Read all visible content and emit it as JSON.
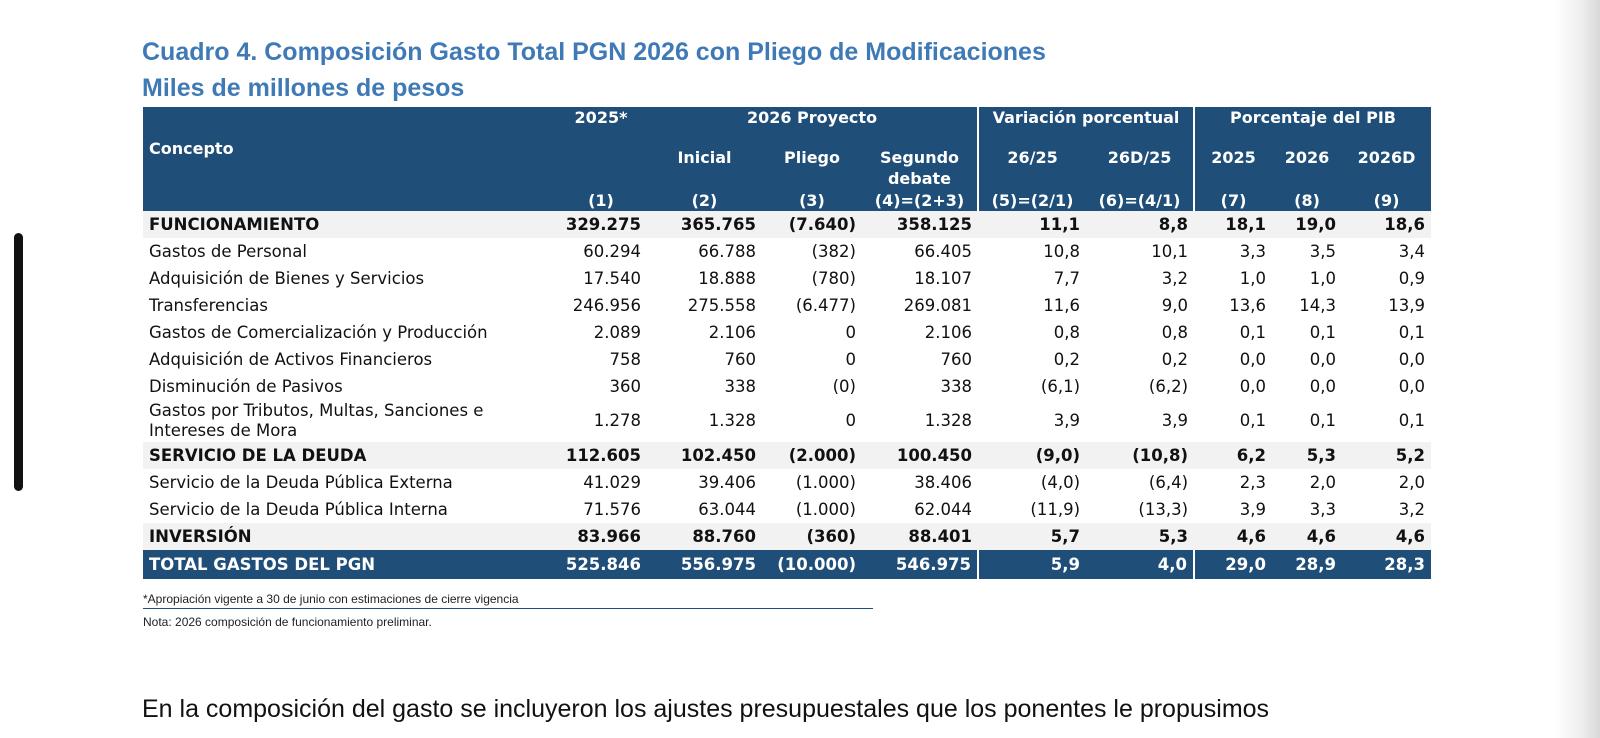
{
  "title_line1": "Cuadro 4. Composición Gasto Total PGN 2026 con Pliego de Modificaciones",
  "title_line2": "Miles de millones de pesos",
  "header": {
    "concepto": "Concepto",
    "y2025": "2025*",
    "proyecto": "2026 Proyecto",
    "variacion": "Variación porcentual",
    "porcentaje": "Porcentaje del PIB",
    "inicial": "Inicial",
    "pliego": "Pliego",
    "segundo": "Segundo debate",
    "v1": "26/25",
    "v2": "26D/25",
    "p1": "2025",
    "p2": "2026",
    "p3": "2026D",
    "n1": "(1)",
    "n2": "(2)",
    "n3": "(3)",
    "n4": "(4)=(2+3)",
    "n5": "(5)=(2/1)",
    "n6": "(6)=(4/1)",
    "n7": "(7)",
    "n8": "(8)",
    "n9": "(9)"
  },
  "rows": [
    {
      "label": "FUNCIONAMIENTO",
      "v": [
        "329.275",
        "365.765",
        "(7.640)",
        "358.125",
        "11,1",
        "8,8",
        "18,1",
        "19,0",
        "18,6"
      ]
    },
    {
      "label": "Gastos de Personal",
      "v": [
        "60.294",
        "66.788",
        "(382)",
        "66.405",
        "10,8",
        "10,1",
        "3,3",
        "3,5",
        "3,4"
      ]
    },
    {
      "label": "Adquisición de Bienes y Servicios",
      "v": [
        "17.540",
        "18.888",
        "(780)",
        "18.107",
        "7,7",
        "3,2",
        "1,0",
        "1,0",
        "0,9"
      ]
    },
    {
      "label": "Transferencias",
      "v": [
        "246.956",
        "275.558",
        "(6.477)",
        "269.081",
        "11,6",
        "9,0",
        "13,6",
        "14,3",
        "13,9"
      ]
    },
    {
      "label": "Gastos de Comercialización y Producción",
      "v": [
        "2.089",
        "2.106",
        "0",
        "2.106",
        "0,8",
        "0,8",
        "0,1",
        "0,1",
        "0,1"
      ]
    },
    {
      "label": "Adquisición de Activos Financieros",
      "v": [
        "758",
        "760",
        "0",
        "760",
        "0,2",
        "0,2",
        "0,0",
        "0,0",
        "0,0"
      ]
    },
    {
      "label": "Disminución de Pasivos",
      "v": [
        "360",
        "338",
        "(0)",
        "338",
        "(6,1)",
        "(6,2)",
        "0,0",
        "0,0",
        "0,0"
      ]
    },
    {
      "label": "Gastos por Tributos, Multas, Sanciones e Intereses de Mora",
      "v": [
        "1.278",
        "1.328",
        "0",
        "1.328",
        "3,9",
        "3,9",
        "0,1",
        "0,1",
        "0,1"
      ]
    },
    {
      "label": "SERVICIO DE LA DEUDA",
      "v": [
        "112.605",
        "102.450",
        "(2.000)",
        "100.450",
        "(9,0)",
        "(10,8)",
        "6,2",
        "5,3",
        "5,2"
      ]
    },
    {
      "label": "Servicio de la Deuda Pública Externa",
      "v": [
        "41.029",
        "39.406",
        "(1.000)",
        "38.406",
        "(4,0)",
        "(6,4)",
        "2,3",
        "2,0",
        "2,0"
      ]
    },
    {
      "label": "Servicio de la Deuda Pública Interna",
      "v": [
        "71.576",
        "63.044",
        "(1.000)",
        "62.044",
        "(11,9)",
        "(13,3)",
        "3,9",
        "3,3",
        "3,2"
      ]
    },
    {
      "label": "INVERSIÓN",
      "v": [
        "83.966",
        "88.760",
        "(360)",
        "88.401",
        "5,7",
        "5,3",
        "4,6",
        "4,6",
        "4,6"
      ]
    },
    {
      "label": "TOTAL GASTOS DEL PGN",
      "v": [
        "525.846",
        "556.975",
        "(10.000)",
        "546.975",
        "5,9",
        "4,0",
        "29,0",
        "28,9",
        "28,3"
      ]
    }
  ],
  "note1": "*Apropiación vigente a 30 de junio con estimaciones de cierre vigencia",
  "note2": "Nota: 2026 composición de funcionamiento preliminar.",
  "paragraph": "En la composición del gasto se incluyeron los ajustes presupuestales que los ponentes le propusimos"
}
